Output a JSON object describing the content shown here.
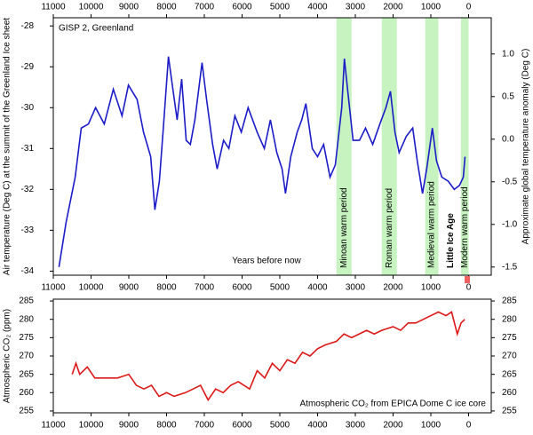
{
  "chart_data": [
    {
      "type": "line",
      "annotations": [
        "GISP 2, Greenland",
        "Years before now"
      ],
      "ylabel": "Air temperature (Deg C) at the summit of the Greenland Ice sheet",
      "y2label": "Approximate global temperature anomaly (Deg C)",
      "xlim": [
        11000,
        -600
      ],
      "xticks": [
        11000,
        10000,
        9000,
        8000,
        7000,
        6000,
        5000,
        4000,
        3000,
        2000,
        1000,
        0
      ],
      "ylim": [
        -34.1,
        -27.8
      ],
      "yticks": [
        -34,
        -33,
        -32,
        -31,
        -30,
        -29,
        -28
      ],
      "y2lim": [
        -1.596,
        1.425
      ],
      "y2ticks": [
        -1.5,
        {
          "value": -1.0,
          "label": "-1.0"
        },
        -0.5,
        {
          "value": 0.0,
          "label": "0.0"
        },
        0.5,
        {
          "value": 1.0,
          "label": "1.0"
        }
      ],
      "periods": [
        {
          "label": "Minoan warm period",
          "start": 3500,
          "end": 3100
        },
        {
          "label": "Roman warm period",
          "start": 2300,
          "end": 1900
        },
        {
          "label": "Medieval warm period",
          "start": 1150,
          "end": 800
        },
        {
          "label": "Modern warm period",
          "start": 200,
          "end": 0
        }
      ],
      "band_color": "#c6f3c0",
      "marker": {
        "label": "Little Ice Age",
        "x": 470,
        "color": "#2b2bd0"
      },
      "series": [
        {
          "name": "GISP 2",
          "color": "#1c1cc8",
          "x": [
            10850,
            10660,
            10420,
            10260,
            10070,
            9880,
            9650,
            9410,
            9180,
            9010,
            8780,
            8610,
            8420,
            8310,
            8190,
            8070,
            7950,
            7840,
            7720,
            7600,
            7480,
            7370,
            7250,
            7060,
            6940,
            6780,
            6660,
            6490,
            6350,
            6190,
            6020,
            5840,
            5600,
            5410,
            5250,
            5080,
            4940,
            4850,
            4710,
            4540,
            4420,
            4310,
            4140,
            4000,
            3840,
            3670,
            3530,
            3360,
            3290,
            3200,
            3060,
            2890,
            2730,
            2540,
            2350,
            2190,
            2070,
            1950,
            1840,
            1650,
            1480,
            1360,
            1220,
            1110,
            960,
            850,
            710,
            540,
            380,
            240,
            140,
            95
          ],
          "values": [
            -33.9,
            -32.8,
            -31.7,
            -30.5,
            -30.4,
            -30.0,
            -30.4,
            -29.55,
            -30.2,
            -29.45,
            -29.8,
            -30.6,
            -31.2,
            -32.5,
            -31.8,
            -30.3,
            -28.75,
            -29.5,
            -30.3,
            -29.3,
            -30.8,
            -30.9,
            -30.3,
            -28.9,
            -29.8,
            -30.9,
            -31.5,
            -30.8,
            -31.0,
            -30.2,
            -30.6,
            -30.0,
            -30.6,
            -31.0,
            -30.3,
            -31.1,
            -31.5,
            -32.1,
            -31.2,
            -30.6,
            -30.3,
            -29.9,
            -31.0,
            -31.2,
            -30.9,
            -31.7,
            -31.4,
            -30.0,
            -28.8,
            -29.6,
            -30.8,
            -30.8,
            -30.5,
            -30.9,
            -30.4,
            -30.0,
            -29.6,
            -30.6,
            -31.1,
            -30.7,
            -30.5,
            -31.3,
            -32.1,
            -31.5,
            -30.5,
            -31.3,
            -31.7,
            -31.8,
            -32.0,
            -31.9,
            -31.7,
            -31.2
          ]
        }
      ]
    },
    {
      "type": "line",
      "annotations": [
        "Atmospheric CO₂ from EPICA Dome C ice core"
      ],
      "ylabel": "Atmospheric CO₂ (ppm)",
      "xlim": [
        11000,
        -600
      ],
      "xticks": [
        11000,
        10000,
        9000,
        8000,
        7000,
        6000,
        5000,
        4000,
        3000,
        2000,
        1000,
        0
      ],
      "ylim": [
        254.5,
        285.5
      ],
      "yticks": [
        255,
        260,
        265,
        270,
        275,
        280,
        285
      ],
      "y2ticks": [
        255,
        260,
        265,
        270,
        275,
        280,
        285
      ],
      "series": [
        {
          "name": "CO₂",
          "color": "#dd1818",
          "x": [
            10500,
            10400,
            10300,
            10100,
            9900,
            9600,
            9300,
            9000,
            8800,
            8600,
            8400,
            8200,
            8000,
            7800,
            7500,
            7300,
            7100,
            6900,
            6700,
            6500,
            6300,
            6100,
            5800,
            5600,
            5400,
            5200,
            5000,
            4800,
            4600,
            4400,
            4200,
            4000,
            3800,
            3500,
            3300,
            3100,
            2900,
            2700,
            2500,
            2300,
            2000,
            1800,
            1600,
            1400,
            1200,
            1000,
            800,
            600,
            450,
            300,
            200,
            100
          ],
          "values": [
            265,
            268,
            265,
            267,
            264,
            264,
            264,
            265,
            262,
            261,
            262,
            259,
            260,
            259,
            260,
            261,
            262,
            258,
            261,
            260,
            262,
            263,
            261,
            266,
            264,
            268,
            266,
            269,
            268,
            271,
            270,
            272,
            273,
            274,
            276,
            275,
            276,
            277,
            276,
            277,
            278,
            277,
            279,
            279,
            280,
            281,
            282,
            281,
            282,
            276,
            279,
            280
          ]
        }
      ]
    }
  ]
}
